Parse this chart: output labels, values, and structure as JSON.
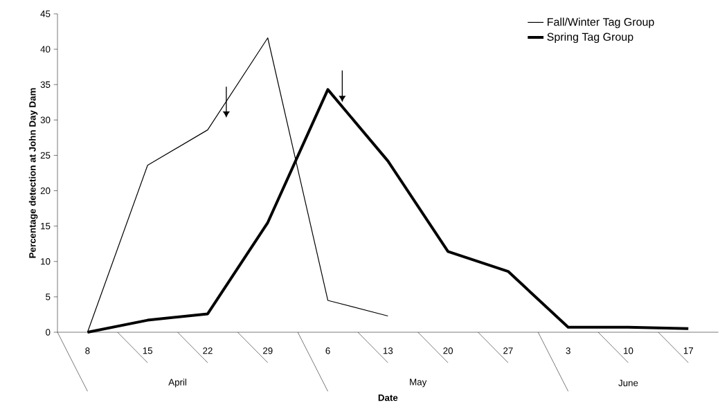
{
  "chart_data": {
    "type": "line",
    "xlabel": "Date",
    "ylabel": "Percentage detection at John Day Dam",
    "categories": [
      "8",
      "15",
      "22",
      "29",
      "6",
      "13",
      "20",
      "27",
      "3",
      "10",
      "17"
    ],
    "series": [
      {
        "name": "Fall/Winter Tag Group",
        "color": "#000000",
        "values": [
          0,
          23.6,
          28.6,
          41.6,
          4.5,
          2.3,
          null,
          null,
          null,
          null,
          null
        ]
      },
      {
        "name": "Spring Tag Group",
        "color": "#000000",
        "values": [
          0,
          1.7,
          2.6,
          15.5,
          34.3,
          24.2,
          11.4,
          8.6,
          0.7,
          0.7,
          0.5
        ]
      }
    ],
    "ylim": [
      0,
      45
    ],
    "yticks": [
      0,
      5,
      10,
      15,
      20,
      25,
      30,
      35,
      40,
      45
    ],
    "annotations": [
      "April",
      "May",
      "June"
    ],
    "grid": false,
    "legend": "top right",
    "marker": "none",
    "line_style": "solid"
  }
}
